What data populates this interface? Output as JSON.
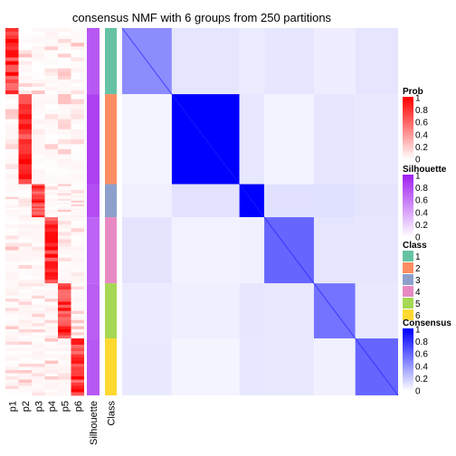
{
  "chart_data": {
    "type": "heatmap",
    "title": "consensus NMF with 6 groups from 250 partitions",
    "prob_columns": [
      "p1",
      "p2",
      "p3",
      "p4",
      "p5",
      "p6"
    ],
    "annotation_columns": [
      "Silhouette",
      "Class"
    ],
    "classes": [
      {
        "label": "1",
        "color": "#66C2A5",
        "fraction": 0.18
      },
      {
        "label": "2",
        "color": "#FC8D62",
        "fraction": 0.245
      },
      {
        "label": "3",
        "color": "#8DA0CB",
        "fraction": 0.09
      },
      {
        "label": "4",
        "color": "#E78AC3",
        "fraction": 0.18
      },
      {
        "label": "5",
        "color": "#A6D854",
        "fraction": 0.15
      },
      {
        "label": "6",
        "color": "#FFD92F",
        "fraction": 0.155
      }
    ],
    "within_class_consensus": [
      0.45,
      1.0,
      1.0,
      0.6,
      0.55,
      0.6
    ],
    "silhouette_by_class": [
      0.75,
      0.85,
      0.8,
      0.7,
      0.72,
      0.75
    ],
    "legends": [
      {
        "title": "Prob",
        "ticks": [
          "1",
          "0.8",
          "0.6",
          "0.4",
          "0.2",
          "0"
        ],
        "low": "#FFFFFF",
        "high": "#FF0000"
      },
      {
        "title": "Silhouette",
        "ticks": [
          "1",
          "0.8",
          "0.6",
          "0.4",
          "0.2",
          "0"
        ],
        "low": "#FFFFFF",
        "high": "#A020F0"
      },
      {
        "title": "Class",
        "items": [
          "1",
          "2",
          "3",
          "4",
          "5",
          "6"
        ]
      },
      {
        "title": "Consensus",
        "ticks": [
          "1",
          "0.8",
          "0.6",
          "0.4",
          "0.2",
          "0"
        ],
        "low": "#FFFFFF",
        "high": "#0000FF"
      }
    ]
  }
}
